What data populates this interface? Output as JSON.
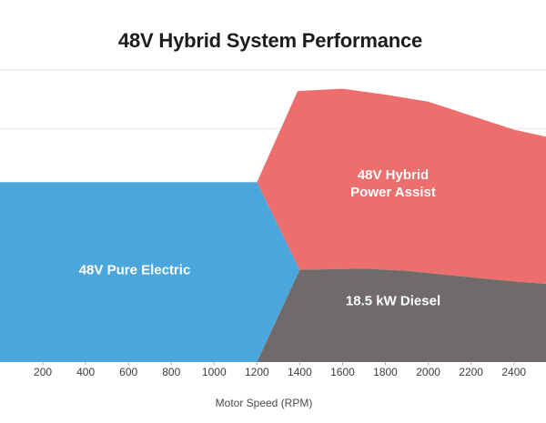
{
  "title": "48V Hybrid System Performance",
  "x_axis": {
    "label": "Motor Speed (RPM)",
    "tick_labels": [
      "200",
      "400",
      "600",
      "800",
      "1000",
      "1200",
      "1400",
      "1600",
      "1800",
      "2000",
      "2200",
      "2400"
    ]
  },
  "colors": {
    "electric": "#4BA7DB",
    "hybrid": "#EC6F6D",
    "diesel": "#6F6B6B",
    "grid": "#e9e9e9",
    "grid_top": "#dedede",
    "tick_mark": "#b0b0b0",
    "tick_label": "#3c3c3c",
    "axis_title": "#4a4a4a",
    "title": "#1c1c1c",
    "background": "#ffffff"
  },
  "chart_data": {
    "type": "area",
    "title": "48V Hybrid System Performance",
    "xlabel": "Motor Speed (RPM)",
    "ylabel": "",
    "y_axis_labels_visible": false,
    "grid": "horizontal",
    "x_domain": [
      0,
      2550
    ],
    "x_ticks": [
      200,
      400,
      600,
      800,
      1000,
      1200,
      1400,
      1600,
      1800,
      2000,
      2200,
      2400
    ],
    "y_domain": [
      0,
      25
    ],
    "y_gridline_units": [
      5,
      10,
      15,
      20,
      25
    ],
    "note": "y axis unlabeled; values estimated in power units (kW-equivalent), gridline every 5 units",
    "regions": [
      {
        "id": "electric",
        "name": "48V Pure Electric",
        "label_lines": [
          "48V Pure Electric"
        ],
        "label_anchor": {
          "rpm": 629,
          "value": 7.9
        },
        "color_key": "electric",
        "points": [
          [
            0,
            0
          ],
          [
            0,
            15.4
          ],
          [
            1200,
            15.4
          ],
          [
            1400,
            7.9
          ],
          [
            1200,
            0
          ]
        ]
      },
      {
        "id": "hybrid",
        "name": "48V Hybrid Power Assist",
        "label_lines": [
          "48V Hybrid",
          "Power Assist"
        ],
        "label_anchor": {
          "rpm": 1836,
          "value": 15.26
        },
        "color_key": "hybrid",
        "points": [
          [
            1200,
            15.4
          ],
          [
            1390,
            23.2
          ],
          [
            1600,
            23.4
          ],
          [
            1800,
            22.9
          ],
          [
            2000,
            22.3
          ],
          [
            2200,
            21.1
          ],
          [
            2400,
            19.9
          ],
          [
            2550,
            19.3
          ],
          [
            2550,
            6.7
          ],
          [
            2400,
            6.9
          ],
          [
            2200,
            7.25
          ],
          [
            1900,
            7.8
          ],
          [
            1700,
            8.0
          ],
          [
            1400,
            7.9
          ]
        ]
      },
      {
        "id": "diesel",
        "name": "18.5 kW Diesel",
        "label_lines": [
          "18.5 kW Diesel"
        ],
        "label_anchor": {
          "rpm": 1836,
          "value": 5.22
        },
        "color_key": "diesel",
        "points": [
          [
            1400,
            7.9
          ],
          [
            1700,
            8.0
          ],
          [
            1900,
            7.8
          ],
          [
            2200,
            7.25
          ],
          [
            2400,
            6.9
          ],
          [
            2550,
            6.7
          ],
          [
            2550,
            0
          ],
          [
            1200,
            0
          ]
        ]
      }
    ]
  }
}
